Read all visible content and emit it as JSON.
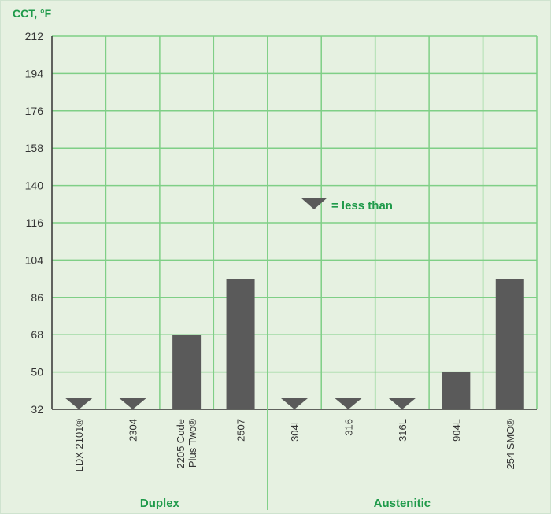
{
  "chart_data": {
    "type": "bar",
    "ylabel": "CCT, °F",
    "yticks": [
      32,
      50,
      68,
      86,
      104,
      116,
      140,
      158,
      176,
      194,
      212
    ],
    "ylim": [
      32,
      212
    ],
    "categories": [
      "LDX 2101®",
      "2304",
      "2205 Code Plus Two®",
      "2507",
      "304L",
      "316",
      "316L",
      "904L",
      "254 SMO®"
    ],
    "category_lines": [
      [
        "LDX 2101®"
      ],
      [
        "2304"
      ],
      [
        "2205 Code",
        "Plus Two®"
      ],
      [
        "2507"
      ],
      [
        "304L"
      ],
      [
        "316"
      ],
      [
        "316L"
      ],
      [
        "904L"
      ],
      [
        "254 SMO®"
      ]
    ],
    "values": [
      32,
      32,
      68,
      95,
      32,
      32,
      32,
      50,
      95
    ],
    "less_than": [
      true,
      true,
      false,
      false,
      true,
      true,
      true,
      false,
      false
    ],
    "groups": [
      {
        "name": "Duplex",
        "count": 4
      },
      {
        "name": "Austenitic",
        "count": 5
      }
    ],
    "legend_text": "= less than",
    "grid": true,
    "colors": {
      "background": "#e6f1e1",
      "grid": "#7fcf86",
      "bar": "#5a5a5a",
      "axis": "#333333",
      "accent": "#1f9a4a"
    }
  }
}
